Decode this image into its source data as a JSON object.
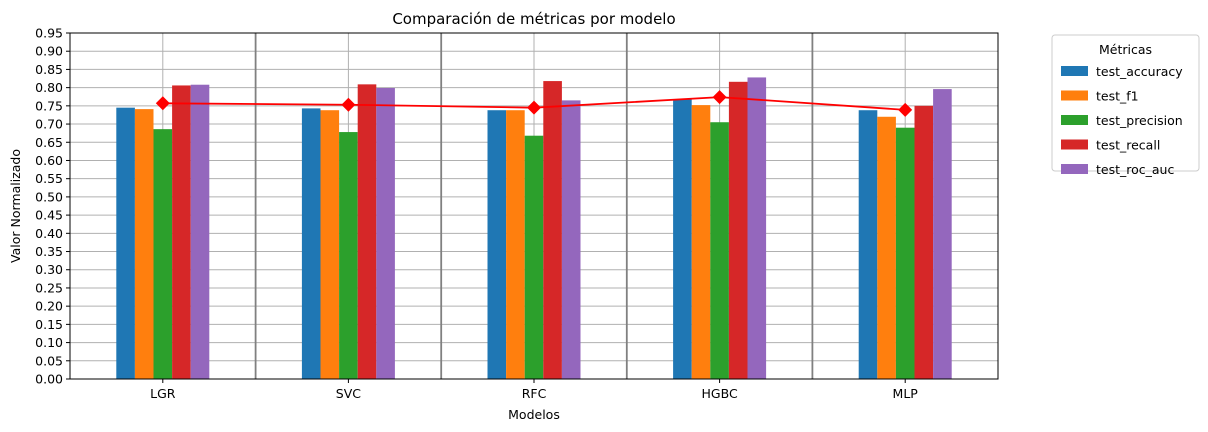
{
  "chart_data": {
    "type": "bar",
    "title": "Comparación de métricas por modelo",
    "xlabel": "Modelos",
    "ylabel": "Valor Normalizado",
    "categories": [
      "LGR",
      "SVC",
      "RFC",
      "HGBC",
      "MLP"
    ],
    "ylim": [
      0,
      0.95
    ],
    "yticks": [
      "0.00",
      "0.05",
      "0.10",
      "0.15",
      "0.20",
      "0.25",
      "0.30",
      "0.35",
      "0.40",
      "0.45",
      "0.50",
      "0.55",
      "0.60",
      "0.65",
      "0.70",
      "0.75",
      "0.80",
      "0.85",
      "0.90",
      "0.95"
    ],
    "grid": true,
    "legend_title": "Métricas",
    "legend_position": "outside-top-right",
    "series": [
      {
        "name": "test_accuracy",
        "color": "#1f77b4",
        "values": [
          0.745,
          0.743,
          0.738,
          0.768,
          0.738
        ]
      },
      {
        "name": "test_f1",
        "color": "#ff7f0e",
        "values": [
          0.741,
          0.738,
          0.738,
          0.752,
          0.72
        ]
      },
      {
        "name": "test_precision",
        "color": "#2ca02c",
        "values": [
          0.686,
          0.678,
          0.668,
          0.705,
          0.69
        ]
      },
      {
        "name": "test_recall",
        "color": "#d62728",
        "values": [
          0.806,
          0.809,
          0.818,
          0.816,
          0.75
        ]
      },
      {
        "name": "test_roc_auc",
        "color": "#9467bd",
        "values": [
          0.808,
          0.799,
          0.765,
          0.828,
          0.796
        ]
      }
    ],
    "mean_line": {
      "color": "#ff0000",
      "marker": "diamond",
      "values": [
        0.757,
        0.753,
        0.745,
        0.774,
        0.739
      ]
    }
  }
}
